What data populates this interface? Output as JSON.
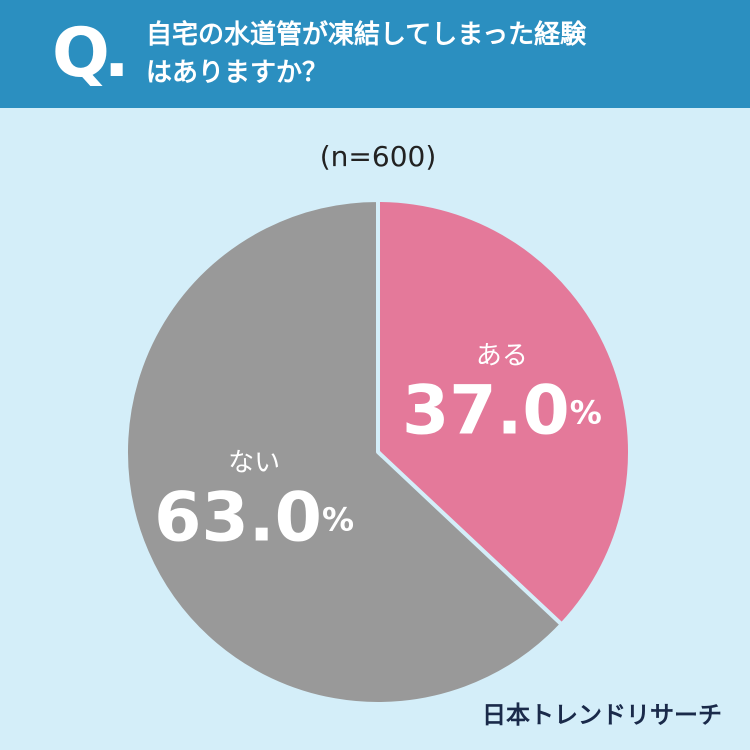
{
  "chart_data": {
    "type": "pie",
    "badge": "Q.",
    "title": "自宅の水道管が凍結してしまった経験はありますか？",
    "subtitle": "(n=600)",
    "categories": [
      "ある",
      "ない"
    ],
    "values": [
      37.0,
      63.0
    ],
    "value_labels": [
      "37.0%",
      "63.0%"
    ],
    "colors": [
      "#e4799a",
      "#999999"
    ],
    "source": "日本トレンドリサーチ"
  }
}
